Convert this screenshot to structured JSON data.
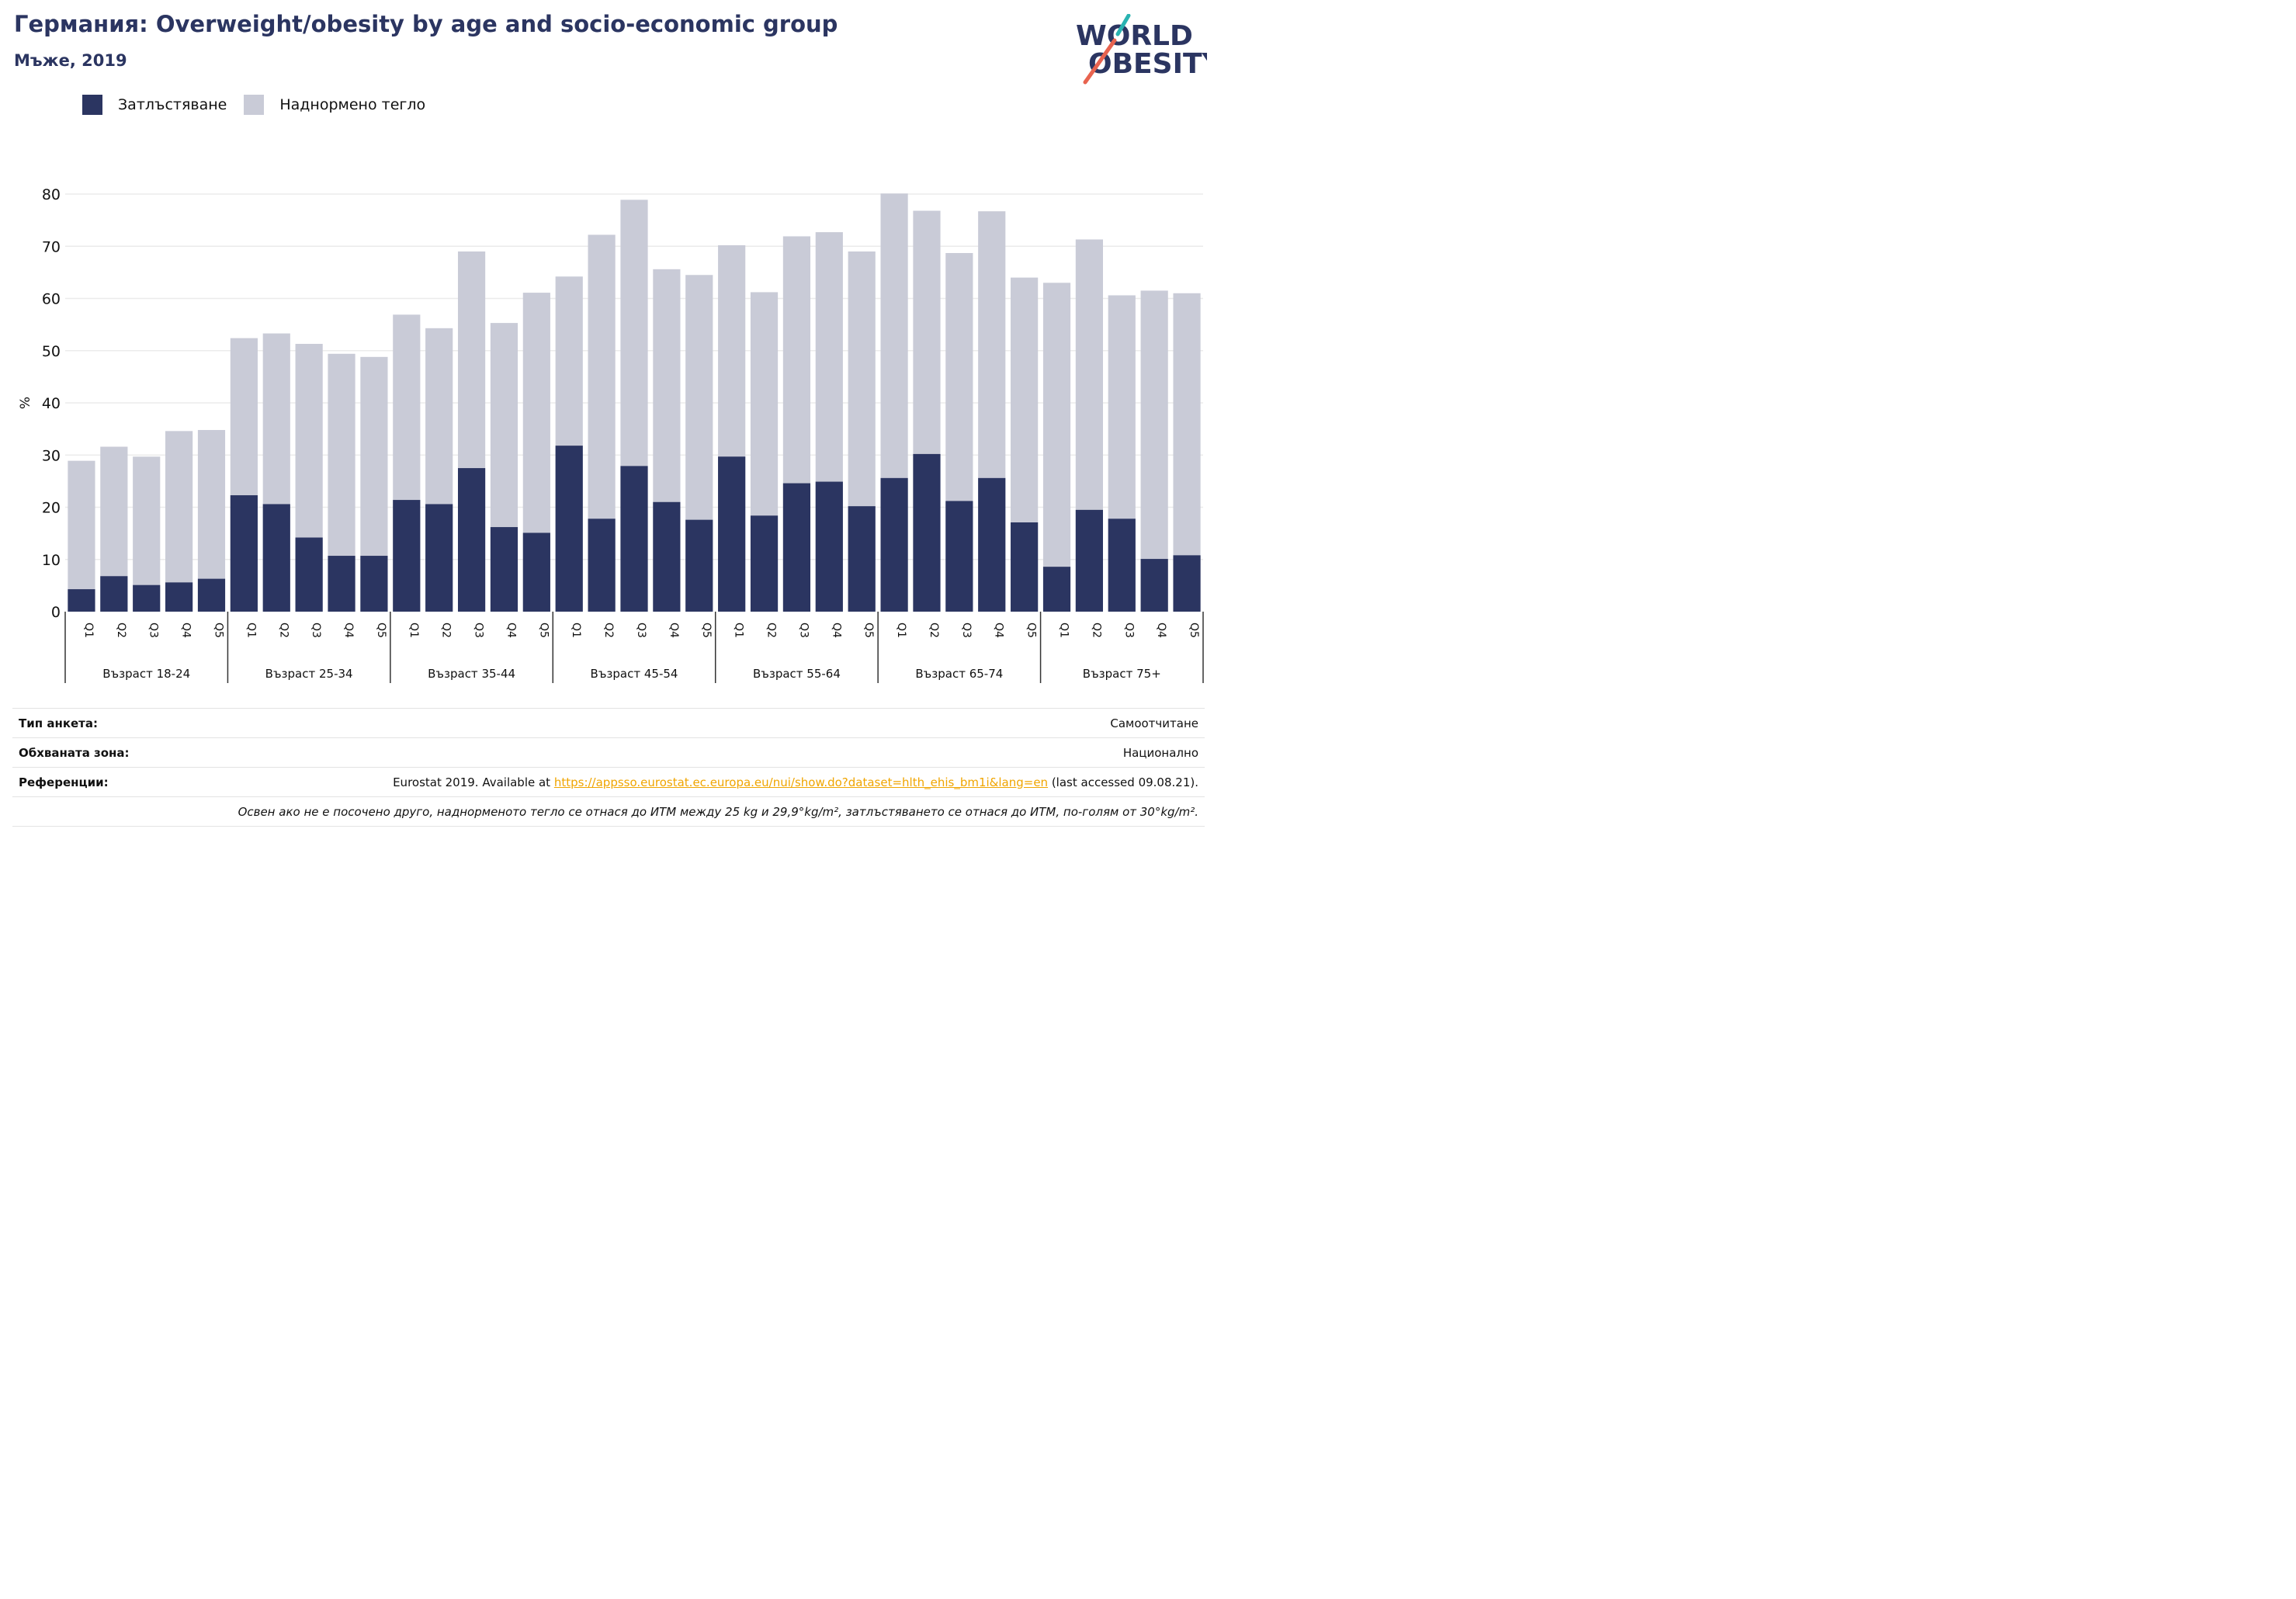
{
  "header": {
    "title": "Германия: Overweight/obesity by age and socio-economic group",
    "subtitle": "Мъже, 2019"
  },
  "logo": {
    "line1": "WORLD",
    "line2": "OBESITY",
    "accent": "#e8634f",
    "accent2": "#2ab3b1",
    "text_color": "#2b3561"
  },
  "legend": [
    {
      "label": "Затлъстяване",
      "color": "#2b3561"
    },
    {
      "label": "Наднормено тегло",
      "color": "#c9cbd7"
    }
  ],
  "chart_data": {
    "type": "bar",
    "stacked": false,
    "ylabel": "%",
    "ylim": [
      0,
      80
    ],
    "yticks": [
      0,
      10,
      20,
      30,
      40,
      50,
      60,
      70,
      80
    ],
    "grid": true,
    "legend_position": "top-left",
    "quintiles": [
      "Q1",
      "Q2",
      "Q3",
      "Q4",
      "Q5"
    ],
    "groups": [
      {
        "label": "Възраст 18-24",
        "obesity": [
          4.3,
          6.8,
          5.1,
          5.6,
          6.3
        ],
        "overweight": [
          28.9,
          31.6,
          29.7,
          34.6,
          34.8
        ]
      },
      {
        "label": "Възраст 25-34",
        "obesity": [
          22.3,
          20.6,
          14.2,
          10.7,
          10.7
        ],
        "overweight": [
          52.4,
          53.3,
          51.3,
          49.4,
          48.8
        ]
      },
      {
        "label": "Възраст 35-44",
        "obesity": [
          21.4,
          20.6,
          27.5,
          16.2,
          15.1
        ],
        "overweight": [
          56.9,
          54.3,
          69.0,
          55.3,
          61.1
        ]
      },
      {
        "label": "Възраст 45-54",
        "obesity": [
          31.8,
          17.8,
          27.9,
          21.0,
          17.6
        ],
        "overweight": [
          64.2,
          72.2,
          78.9,
          65.6,
          64.5
        ]
      },
      {
        "label": "Възраст 55-64",
        "obesity": [
          29.7,
          18.4,
          24.6,
          24.9,
          20.2
        ],
        "overweight": [
          70.2,
          61.2,
          71.9,
          72.7,
          69.0
        ]
      },
      {
        "label": "Възраст 65-74",
        "obesity": [
          25.6,
          30.2,
          21.2,
          25.6,
          17.1
        ],
        "overweight": [
          80.1,
          76.8,
          68.7,
          76.7,
          64.0
        ]
      },
      {
        "label": "Възраст 75+",
        "obesity": [
          8.6,
          19.5,
          17.8,
          10.1,
          10.8
        ],
        "overweight": [
          63.0,
          71.3,
          60.6,
          61.5,
          61.0
        ]
      }
    ]
  },
  "footer": {
    "survey_key": "Тип анкета:",
    "survey_val": "Самоотчитане",
    "area_key": "Обхваната зона:",
    "area_val": "Национално",
    "ref_key": "Референции:",
    "ref_prefix": "Eurostat 2019. Available at ",
    "ref_link": "https://appsso.eurostat.ec.europa.eu/nui/show.do?dataset=hlth_ehis_bm1i&lang=en",
    "ref_suffix": " (last accessed 09.08.21).",
    "note": "Освен ако не е посочено друго, наднорменото тегло се отнася до ИТМ между 25 kg и 29,9°kg/m², затлъстяването се отнася до ИТМ, по-голям от 30°kg/m²."
  }
}
